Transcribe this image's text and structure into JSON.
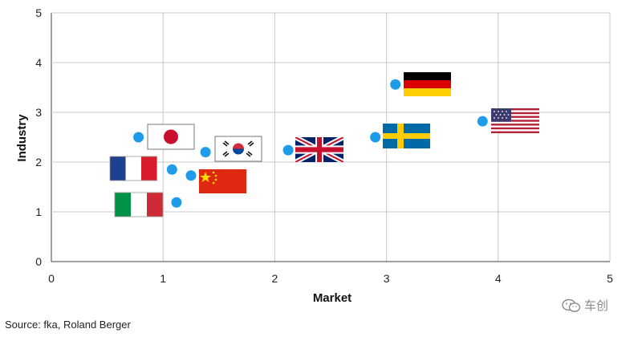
{
  "chart_data": {
    "type": "scatter",
    "xlabel": "Market",
    "ylabel": "Industry",
    "xlim": [
      0,
      5
    ],
    "ylim": [
      0,
      5
    ],
    "xticks": [
      "0",
      "1",
      "2",
      "3",
      "4",
      "5"
    ],
    "yticks": [
      "0",
      "1",
      "2",
      "3",
      "4",
      "5"
    ],
    "grid": true,
    "marker_color": "#1e9be9",
    "points": [
      {
        "country": "japan",
        "x": 0.78,
        "y": 2.5
      },
      {
        "country": "france",
        "x": 1.08,
        "y": 1.85
      },
      {
        "country": "italy",
        "x": 1.12,
        "y": 1.19
      },
      {
        "country": "china",
        "x": 1.25,
        "y": 1.73
      },
      {
        "country": "korea",
        "x": 1.38,
        "y": 2.2
      },
      {
        "country": "uk",
        "x": 2.12,
        "y": 2.24
      },
      {
        "country": "sweden",
        "x": 2.9,
        "y": 2.5
      },
      {
        "country": "germany",
        "x": 3.08,
        "y": 3.56
      },
      {
        "country": "usa",
        "x": 3.86,
        "y": 2.82
      }
    ]
  },
  "footer": {
    "source": "Source: fka, Roland Berger"
  },
  "watermark": {
    "text": "车创"
  }
}
